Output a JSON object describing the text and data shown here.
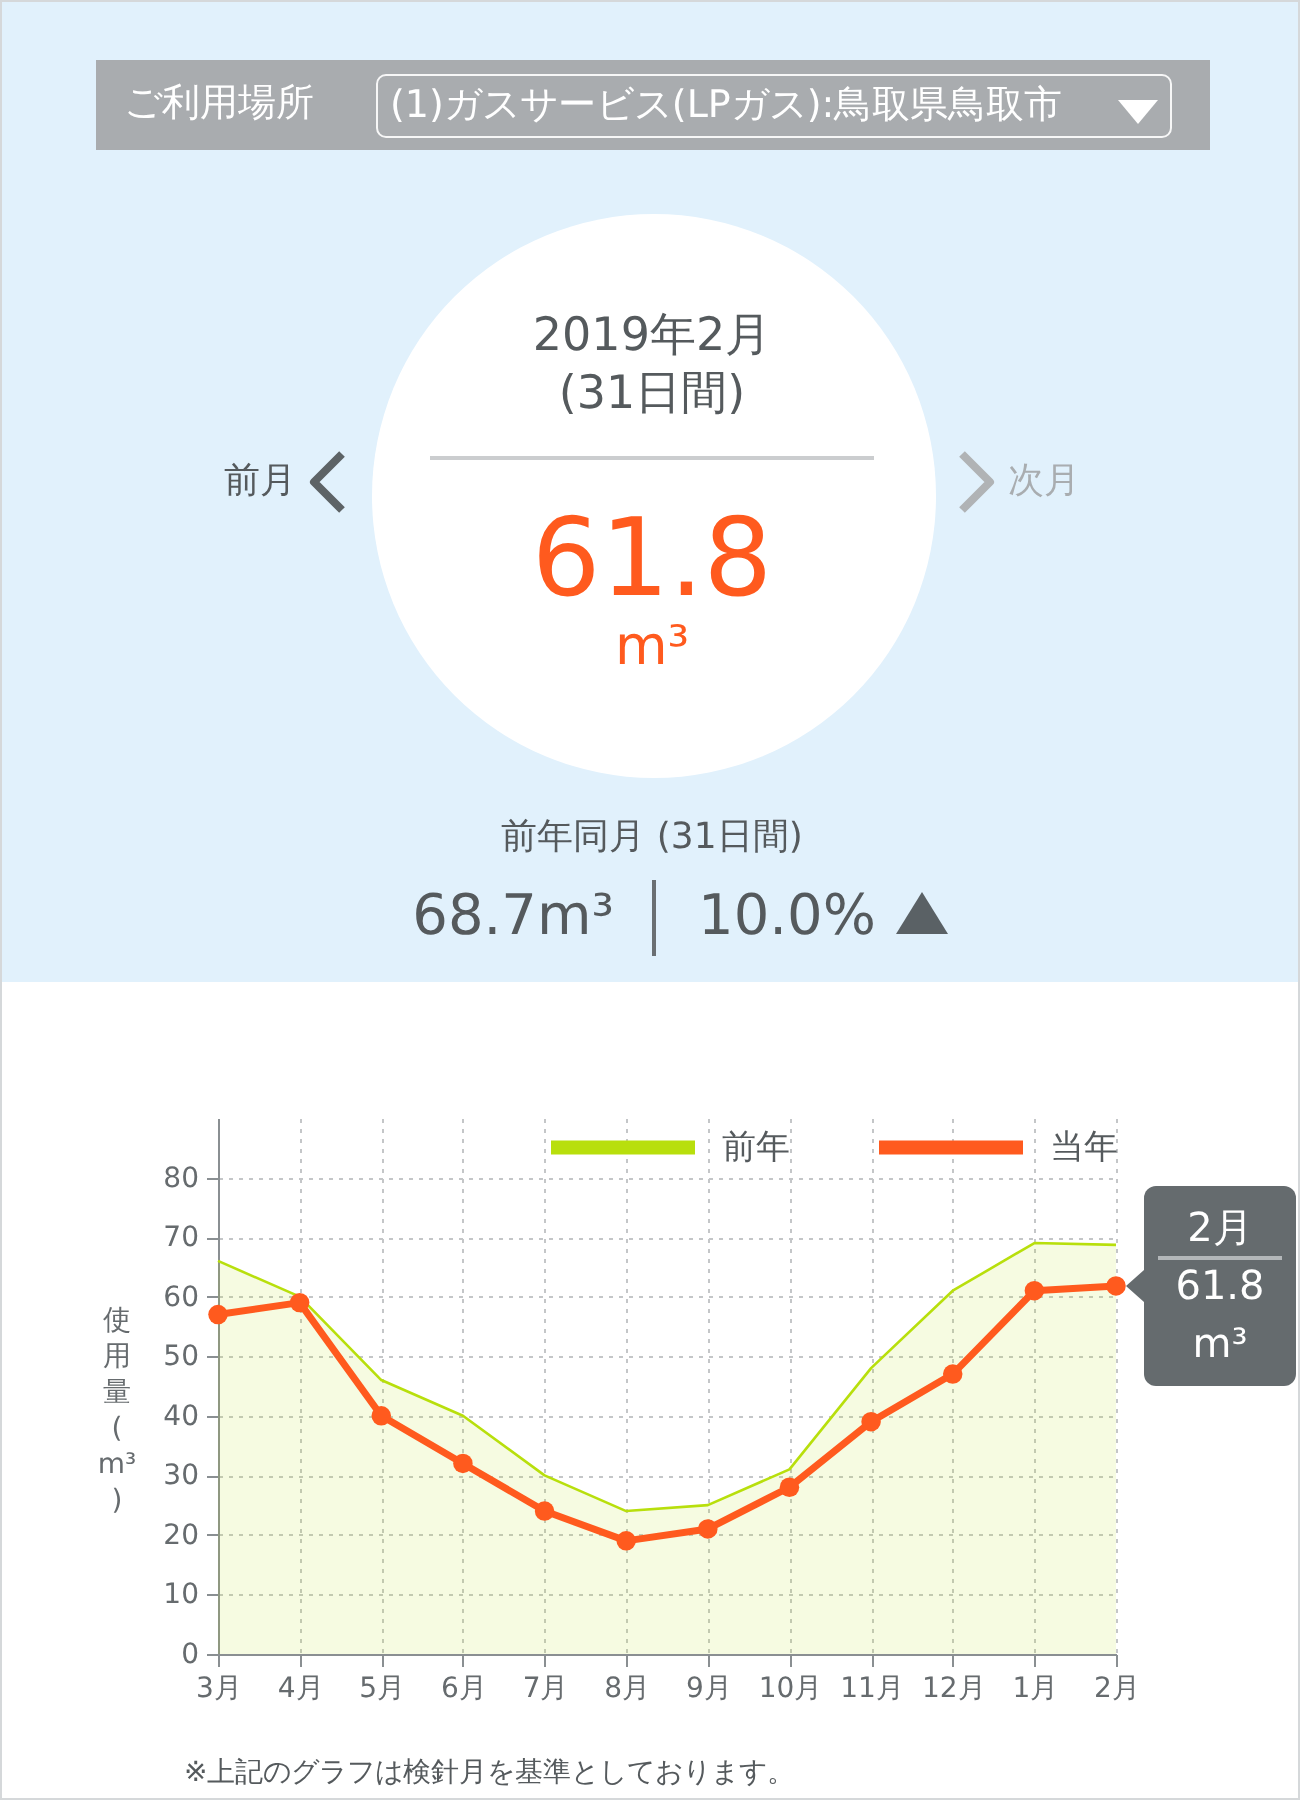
{
  "chart_data": [
    {
      "type": "other",
      "annotations": [
        "ご利用場所",
        "(1)ガスサービス(LPガス):鳥取県鳥取市",
        "2019年2月",
        "(31日間)",
        "前月",
        "次月",
        "61.8",
        "m³",
        "前年同月 (31日間)",
        "68.7m³",
        "10.0%"
      ]
    },
    {
      "type": "line",
      "categories": [
        "3月",
        "4月",
        "5月",
        "6月",
        "7月",
        "8月",
        "9月",
        "10月",
        "11月",
        "12月",
        "1月",
        "2月"
      ],
      "series": [
        {
          "name": "前年",
          "type": "area",
          "color": "#b8df0c",
          "values": [
            66,
            60,
            46,
            40,
            30,
            24,
            25,
            31,
            48,
            61,
            69,
            68.7
          ]
        },
        {
          "name": "当年",
          "type": "line",
          "color": "#ff5a1e",
          "marker": "circle",
          "values": [
            57,
            59,
            40,
            32,
            24,
            19,
            21,
            28,
            39,
            47,
            61,
            61.8
          ]
        }
      ],
      "ylim": [
        0,
        90
      ],
      "yticks": [
        0,
        10,
        20,
        30,
        40,
        50,
        60,
        70,
        80
      ],
      "ylabel": "使用量(m³)",
      "grid": true,
      "legend": "top right",
      "annotations": [
        {
          "text": "2月\n61.8\nm³",
          "x": "2月",
          "y": 61.8
        },
        "※上記のグラフは検針月を基準としております。"
      ]
    }
  ]
}
